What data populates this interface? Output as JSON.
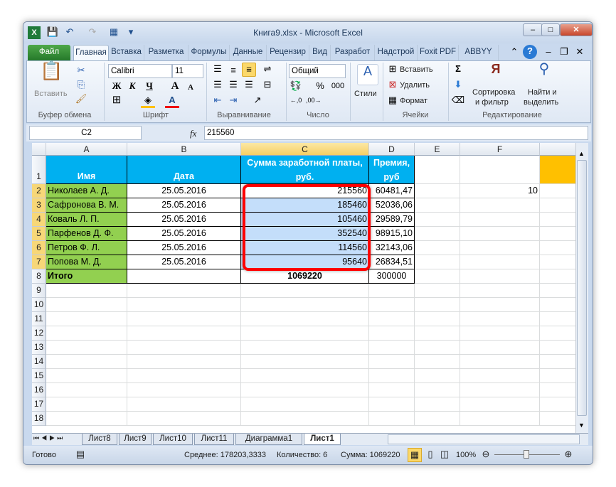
{
  "window": {
    "title": "Книга9.xlsx  -  Microsoft Excel"
  },
  "tabs": [
    "Файл",
    "Главная",
    "Вставка",
    "Разметка",
    "Формулы",
    "Данные",
    "Рецензир",
    "Вид",
    "Разработ",
    "Надстрой",
    "Foxit PDF",
    "ABBYY PD"
  ],
  "ribbon": {
    "clipboard": {
      "paste": "Вставить",
      "label": "Буфер обмена"
    },
    "font": {
      "name": "Calibri",
      "size": "11",
      "bold": "Ж",
      "italic": "К",
      "underline": "Ч",
      "label": "Шрифт"
    },
    "alignment": {
      "label": "Выравнивание"
    },
    "number": {
      "format": "Общий",
      "percent": "%",
      "thousands": "000",
      "label": "Число"
    },
    "styles": {
      "label": "Стили"
    },
    "cells": {
      "insert": "Вставить",
      "delete": "Удалить",
      "format": "Формат",
      "label": "Ячейки"
    },
    "editing": {
      "sort1": "Сортировка",
      "sort2": "и фильтр",
      "find1": "Найти и",
      "find2": "выделить",
      "label": "Редактирование"
    }
  },
  "formula_bar": {
    "name_box": "C2",
    "fx": "fx",
    "value": "215560"
  },
  "columns": [
    "A",
    "B",
    "C",
    "D",
    "E",
    "F"
  ],
  "rows": [
    "1",
    "2",
    "3",
    "4",
    "5",
    "6",
    "7",
    "8",
    "9",
    "10",
    "11",
    "12",
    "13",
    "14",
    "15",
    "16",
    "17",
    "18"
  ],
  "header": {
    "a": "Имя",
    "b": "Дата",
    "c1": "Сумма заработной платы,",
    "c2": "руб.",
    "d1": "Премия,",
    "d2": "руб"
  },
  "data": [
    [
      "Николаев А. Д.",
      "25.05.2016",
      "215560",
      "60481,47"
    ],
    [
      "Сафронова В. М.",
      "25.05.2016",
      "185460",
      "52036,06"
    ],
    [
      "Коваль Л. П.",
      "25.05.2016",
      "105460",
      "29589,79"
    ],
    [
      "Парфенов Д. Ф.",
      "25.05.2016",
      "352540",
      "98915,10"
    ],
    [
      "Петров Ф. Л.",
      "25.05.2016",
      "114560",
      "32143,06"
    ],
    [
      "Попова М. Д.",
      "25.05.2016",
      "95640",
      "26834,51"
    ]
  ],
  "total": {
    "label": "Итого",
    "c": "1069220",
    "d": "300000"
  },
  "f2": "10",
  "sheets": [
    "Лист8",
    "Лист9",
    "Лист10",
    "Лист11",
    "Диаграмма1",
    "Лист1"
  ],
  "active_sheet": "Лист1",
  "status": {
    "ready": "Готово",
    "average": "Среднее: 178203,3333",
    "count": "Количество: 6",
    "sum": "Сумма: 1069220",
    "zoom": "100%"
  },
  "colors": {
    "header_fill": "#00b0f0",
    "name_fill": "#92d050",
    "selection": "#c4defa",
    "highlight": "#ff0000",
    "g1_fill": "#ffc000"
  }
}
